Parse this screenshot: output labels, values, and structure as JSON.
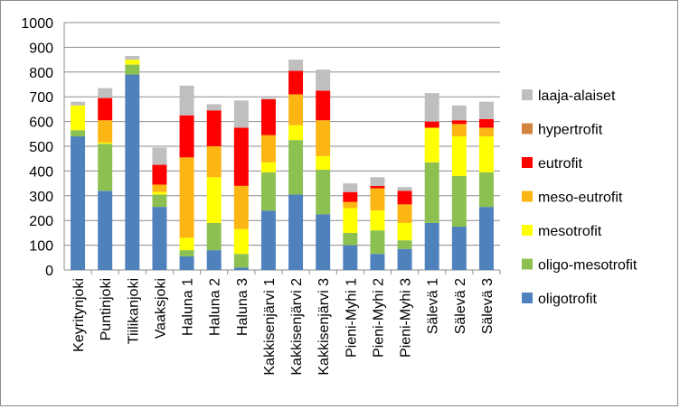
{
  "chart_data": {
    "type": "bar",
    "stacked": true,
    "title": "",
    "xlabel": "",
    "ylabel": "",
    "ylim": [
      0,
      1000
    ],
    "yticks": [
      0,
      100,
      200,
      300,
      400,
      500,
      600,
      700,
      800,
      900,
      1000
    ],
    "grid": true,
    "legend_position": "right",
    "categories": [
      "Keyritynjoki",
      "Puntinjoki",
      "Tiilikanjoki",
      "Vaaksjoki",
      "Haluna 1",
      "Haluna 2",
      "Haluna 3",
      "Kakkisenjärvi 1",
      "Kakkisenjärvi 2",
      "Kakkisenjärvi 3",
      "Pieni-Myhi 1",
      "Pieni-Myhi 2",
      "Pieni-Myhi 3",
      "Sälevä 1",
      "Sälevä 2",
      "Sälevä 3"
    ],
    "series": [
      {
        "name": "oligotrofit",
        "color": "#4f81bd",
        "values": [
          540,
          320,
          790,
          255,
          55,
          80,
          10,
          240,
          305,
          225,
          100,
          65,
          85,
          190,
          175,
          255
        ]
      },
      {
        "name": "oligo-mesotrofit",
        "color": "#8cc152",
        "values": [
          25,
          190,
          40,
          50,
          25,
          110,
          55,
          155,
          220,
          180,
          50,
          95,
          35,
          245,
          205,
          140
        ]
      },
      {
        "name": "mesotrofit",
        "color": "#ffff00",
        "values": [
          100,
          5,
          20,
          10,
          50,
          185,
          100,
          40,
          60,
          55,
          100,
          80,
          70,
          140,
          160,
          145
        ]
      },
      {
        "name": "meso-eutrofit",
        "color": "#fcb614",
        "values": [
          0,
          90,
          0,
          30,
          325,
          125,
          175,
          110,
          125,
          145,
          25,
          90,
          75,
          0,
          50,
          35
        ]
      },
      {
        "name": "hypertrofit",
        "color": "#d2843f",
        "values": [
          0,
          0,
          0,
          0,
          0,
          0,
          0,
          0,
          0,
          0,
          0,
          0,
          0,
          0,
          0,
          0
        ]
      },
      {
        "name": "eutrofit",
        "color": "#ff0000",
        "values": [
          0,
          90,
          0,
          80,
          170,
          145,
          235,
          145,
          95,
          120,
          40,
          10,
          55,
          25,
          15,
          35
        ]
      },
      {
        "name": "laaja-alaiset",
        "color": "#bfbfbf",
        "values": [
          15,
          40,
          15,
          70,
          120,
          25,
          110,
          5,
          45,
          85,
          35,
          35,
          15,
          115,
          60,
          70
        ]
      }
    ],
    "legend_order": [
      "laaja-alaiset",
      "hypertrofit",
      "eutrofit",
      "meso-eutrofit",
      "mesotrofit",
      "oligo-mesotrofit",
      "oligotrofit"
    ]
  }
}
